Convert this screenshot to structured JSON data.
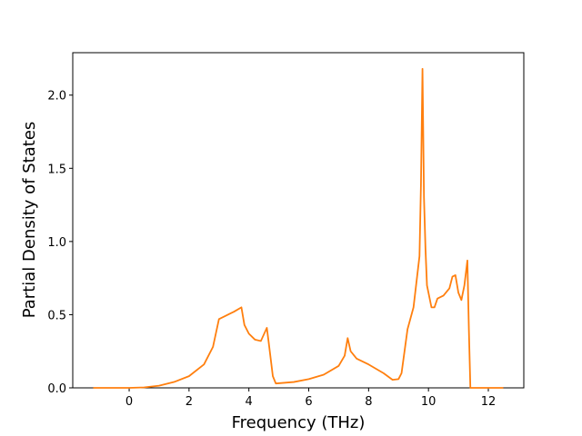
{
  "chart_data": {
    "type": "line",
    "x_label": "Frequency (THz)",
    "y_label": "Partial Density of States",
    "x": [
      -1.2,
      0,
      0.5,
      1,
      1.5,
      2,
      2.5,
      2.8,
      3.0,
      3.2,
      3.5,
      3.75,
      3.85,
      4.0,
      4.2,
      4.4,
      4.6,
      4.65,
      4.8,
      4.9,
      5.5,
      6.0,
      6.5,
      7.0,
      7.2,
      7.3,
      7.4,
      7.6,
      8.0,
      8.5,
      8.8,
      9.0,
      9.1,
      9.3,
      9.5,
      9.7,
      9.75,
      9.8,
      9.85,
      9.9,
      9.95,
      10.1,
      10.2,
      10.3,
      10.5,
      10.7,
      10.8,
      10.9,
      11.0,
      11.1,
      11.2,
      11.3,
      11.35,
      11.4,
      12.5
    ],
    "series": [
      {
        "color": "#ff7f0e",
        "values": [
          0,
          0,
          0.003,
          0.015,
          0.04,
          0.08,
          0.16,
          0.28,
          0.47,
          0.49,
          0.52,
          0.55,
          0.43,
          0.37,
          0.33,
          0.32,
          0.41,
          0.33,
          0.08,
          0.03,
          0.04,
          0.06,
          0.09,
          0.15,
          0.22,
          0.34,
          0.25,
          0.2,
          0.16,
          0.1,
          0.055,
          0.06,
          0.1,
          0.4,
          0.55,
          0.9,
          1.4,
          2.18,
          1.3,
          0.95,
          0.7,
          0.55,
          0.55,
          0.61,
          0.63,
          0.68,
          0.76,
          0.77,
          0.65,
          0.6,
          0.7,
          0.87,
          0.4,
          0,
          0
        ]
      }
    ],
    "xlim": [
      -1.885,
      13.185
    ],
    "ylim": [
      0,
      2.29
    ],
    "xticks": [
      0,
      2,
      4,
      6,
      8,
      10,
      12
    ],
    "yticks": [
      {
        "value": 0,
        "label": "0.0"
      },
      0.5,
      {
        "value": 1,
        "label": "1.0"
      },
      1.5,
      {
        "value": 2,
        "label": "2.0"
      }
    ]
  }
}
